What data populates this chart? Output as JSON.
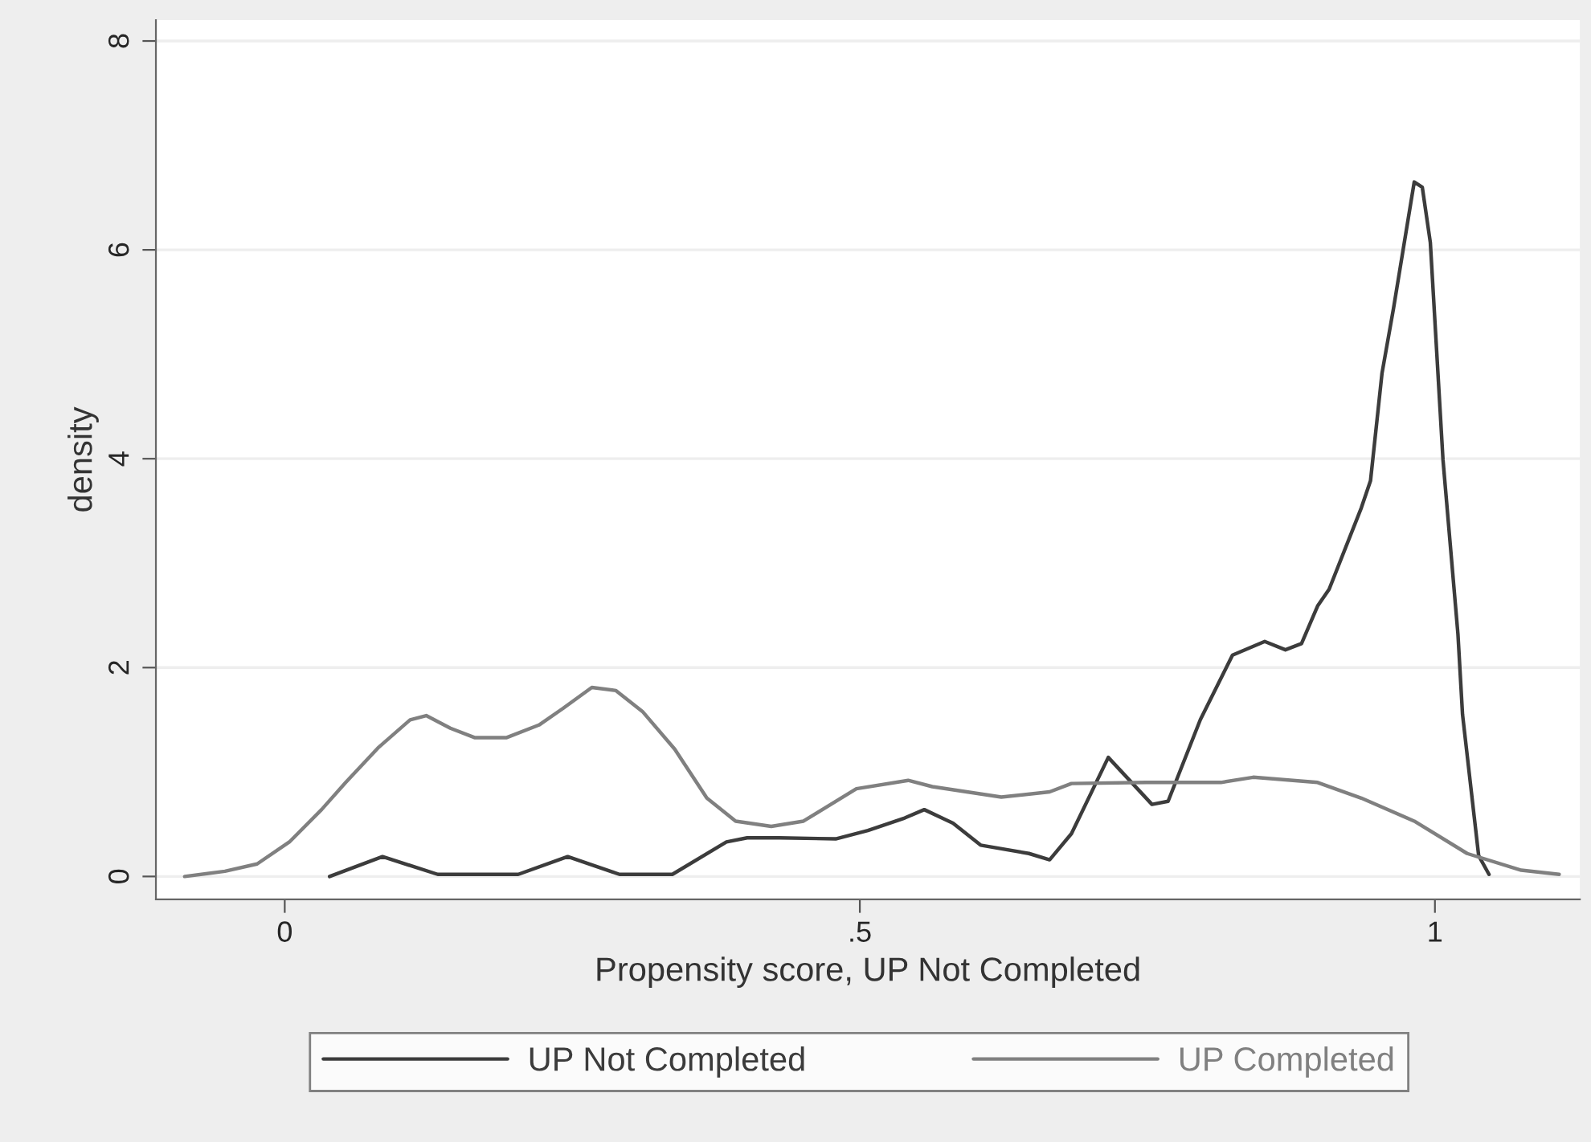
{
  "chart_data": {
    "type": "line",
    "xlabel": "Propensity score, UP Not Completed",
    "ylabel": "density",
    "series": [
      {
        "name": "UP Not Completed",
        "color": "#3c3c3c",
        "x": [
          0.039,
          0.085,
          0.133,
          0.203,
          0.246,
          0.291,
          0.337,
          0.384,
          0.402,
          0.43,
          0.479,
          0.507,
          0.539,
          0.556,
          0.581,
          0.605,
          0.647,
          0.665,
          0.684,
          0.716,
          0.754,
          0.768,
          0.796,
          0.824,
          0.852,
          0.87,
          0.884,
          0.898,
          0.908,
          0.936,
          0.944,
          0.954,
          0.964,
          0.982,
          0.989,
          0.996,
          1.007,
          1.02,
          1.024,
          1.038,
          1.047
        ],
        "values": [
          0,
          0.19,
          0.02,
          0.02,
          0.19,
          0.02,
          0.02,
          0.33,
          0.37,
          0.37,
          0.36,
          0.44,
          0.56,
          0.64,
          0.51,
          0.3,
          0.22,
          0.16,
          0.41,
          1.14,
          0.69,
          0.72,
          1.5,
          2.12,
          2.25,
          2.17,
          2.23,
          2.59,
          2.75,
          3.53,
          3.79,
          4.82,
          5.44,
          6.65,
          6.6,
          6.07,
          3.99,
          2.32,
          1.55,
          0.2,
          0.02
        ]
      },
      {
        "name": "UP Completed",
        "color": "#808080",
        "x": [
          -0.087,
          -0.052,
          -0.024,
          0.004,
          0.032,
          0.053,
          0.081,
          0.109,
          0.123,
          0.144,
          0.165,
          0.193,
          0.221,
          0.242,
          0.267,
          0.288,
          0.311,
          0.339,
          0.367,
          0.392,
          0.423,
          0.451,
          0.497,
          0.542,
          0.563,
          0.623,
          0.665,
          0.684,
          0.749,
          0.814,
          0.842,
          0.898,
          0.936,
          0.982,
          1.028,
          1.075,
          1.108
        ],
        "values": [
          0,
          0.05,
          0.12,
          0.33,
          0.64,
          0.9,
          1.23,
          1.5,
          1.54,
          1.42,
          1.33,
          1.33,
          1.45,
          1.61,
          1.81,
          1.78,
          1.58,
          1.22,
          0.75,
          0.53,
          0.48,
          0.53,
          0.84,
          0.92,
          0.86,
          0.76,
          0.81,
          0.89,
          0.9,
          0.9,
          0.95,
          0.9,
          0.75,
          0.53,
          0.22,
          0.06,
          0.02
        ]
      }
    ],
    "xlim": [
      -0.112,
      1.126
    ],
    "xticks": [
      0,
      {
        "value": 0.5,
        "label": ".5"
      },
      1
    ],
    "ylim": [
      -0.22,
      8.2
    ],
    "yticks": [
      0,
      2,
      4,
      6,
      8
    ],
    "grid": "y",
    "legend": "bottom",
    "line_style": "solid",
    "marker": "none"
  }
}
